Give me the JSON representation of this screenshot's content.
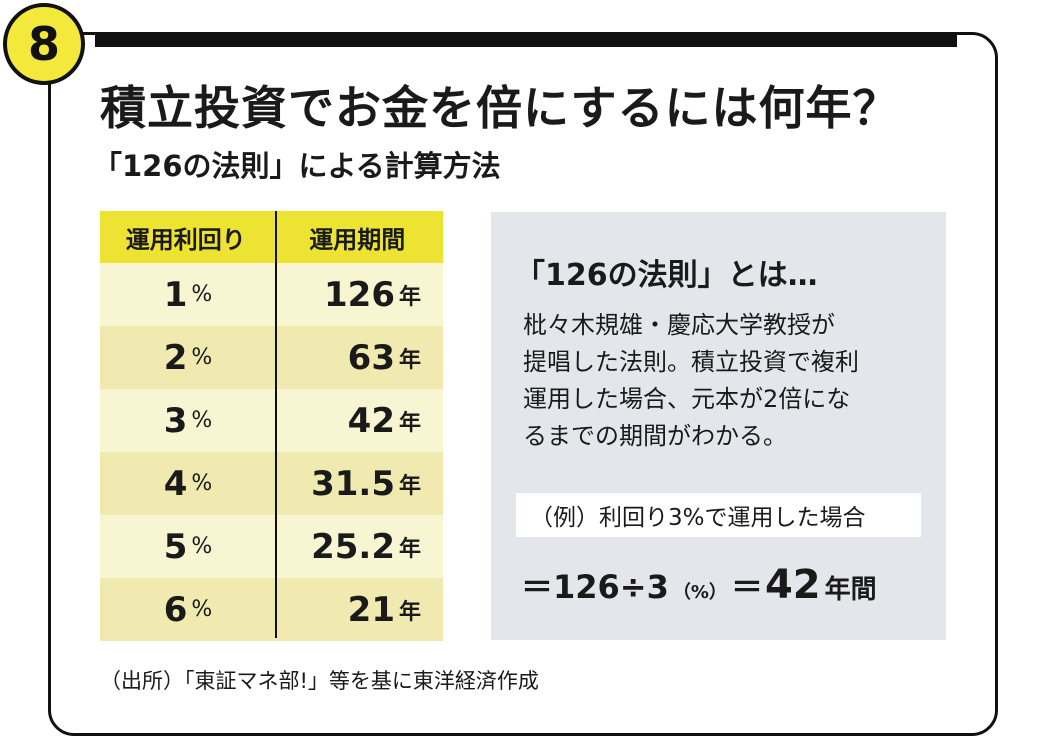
{
  "badge": "8",
  "title": "積立投資でお金を倍にするには何年？",
  "subtitle": "「126の法則」による計算方法",
  "table": {
    "headers": [
      "運用利回り",
      "運用期間"
    ],
    "rows": [
      {
        "rate": "1",
        "rate_unit": "%",
        "period": "126",
        "period_unit": "年"
      },
      {
        "rate": "2",
        "rate_unit": "%",
        "period": "63",
        "period_unit": "年"
      },
      {
        "rate": "3",
        "rate_unit": "%",
        "period": "42",
        "period_unit": "年"
      },
      {
        "rate": "4",
        "rate_unit": "%",
        "period": "31.5",
        "period_unit": "年"
      },
      {
        "rate": "5",
        "rate_unit": "%",
        "period": "25.2",
        "period_unit": "年"
      },
      {
        "rate": "6",
        "rate_unit": "%",
        "period": "21",
        "period_unit": "年"
      }
    ]
  },
  "info": {
    "title": "「126の法則」とは…",
    "body_lines": [
      "枇々木規雄・慶応大学教授が",
      "提唱した法則。積立投資で複利",
      "運用した場合、元本が2倍にな",
      "るまでの期間がわかる。"
    ],
    "example": "（例）利回り3%で運用した場合",
    "formula_part1": "＝126÷3",
    "formula_part2": "（%）",
    "formula_part3": "＝",
    "formula_result": "42",
    "formula_unit": "年間"
  },
  "source": "（出所）「東証マネ部!」等を基に東洋経済作成",
  "colors": {
    "accent_yellow": "#ece332",
    "row_light": "#f8f5d3",
    "row_dark": "#f0eab1",
    "info_bg": "#e3e7ec"
  }
}
